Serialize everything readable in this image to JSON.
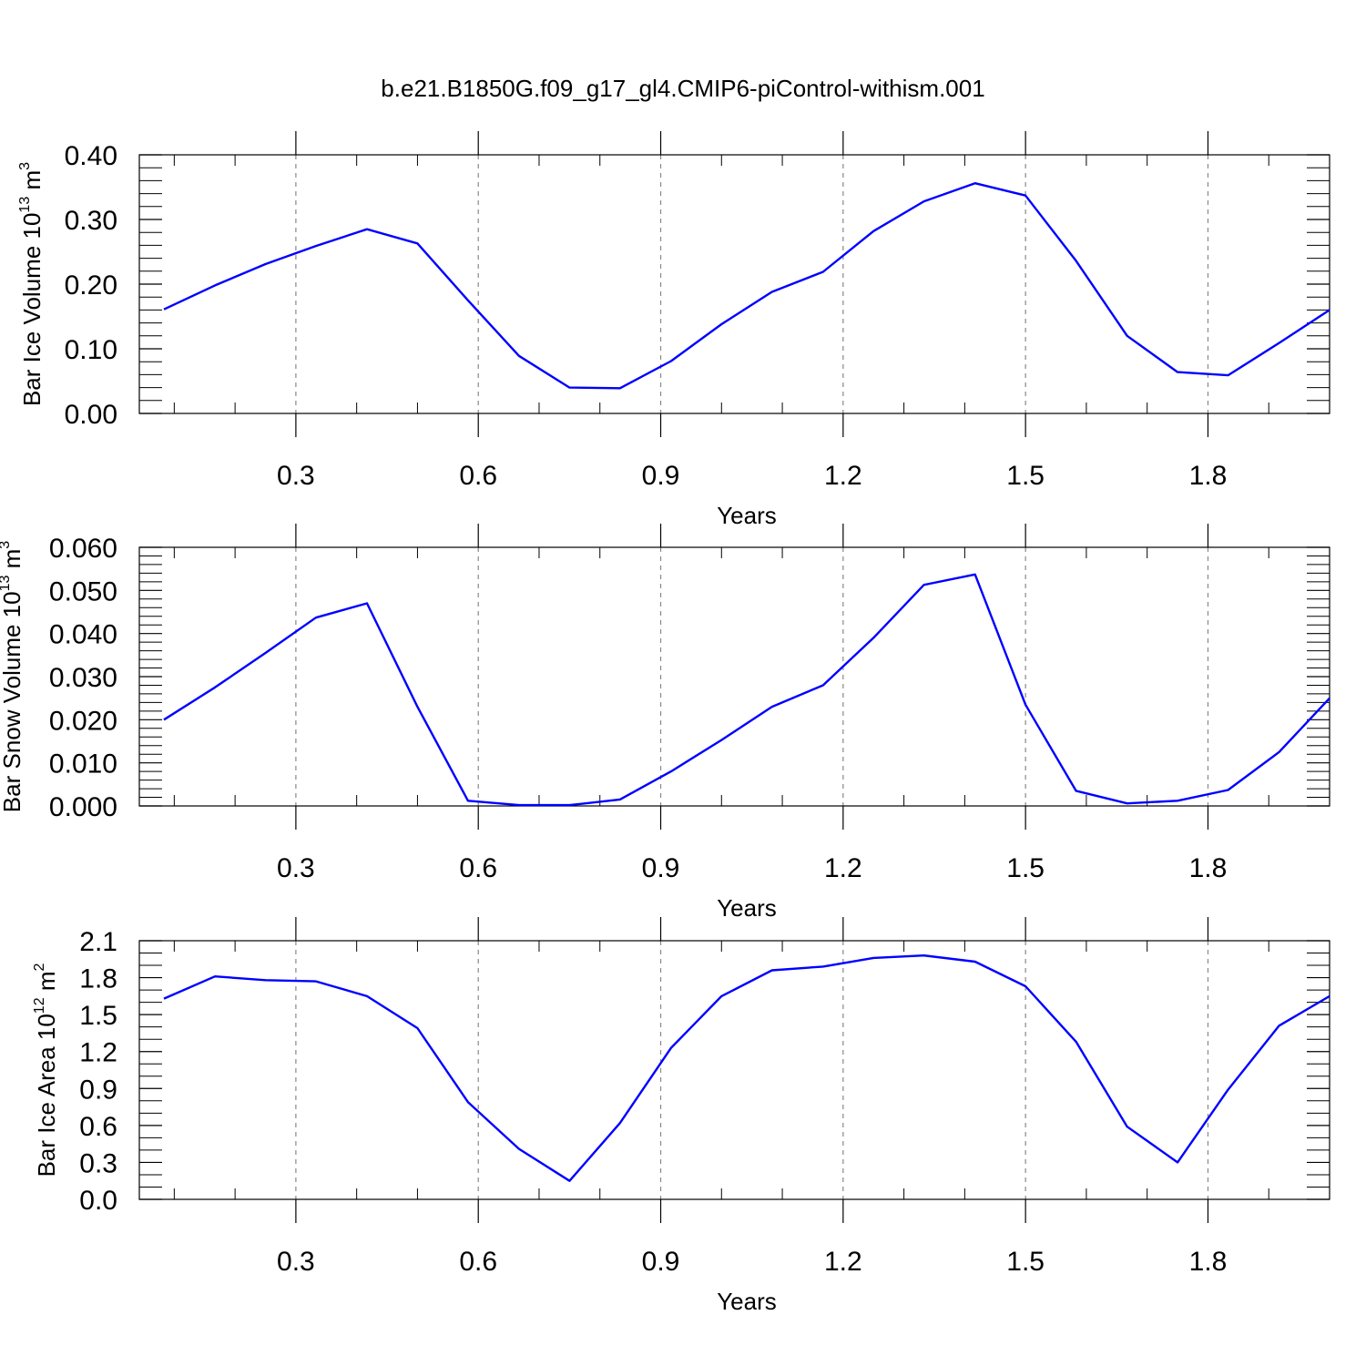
{
  "figure": {
    "title": "b.e21.B1850G.f09_g17_gl4.CMIP6-piControl-withism.001"
  },
  "chart_data": [
    {
      "type": "line",
      "xlabel": "Years",
      "ylabel": {
        "text": "Bar Ice Volume 10",
        "sup": "13",
        "unit": " m",
        "unit_sup": "3"
      },
      "xlim": [
        0.083,
        2.0
      ],
      "ylim": [
        0.0,
        0.4
      ],
      "x_ticks": [
        0.3,
        0.6,
        0.9,
        1.2,
        1.5,
        1.8
      ],
      "x_tick_labels": [
        "0.3",
        "0.6",
        "0.9",
        "1.2",
        "1.5",
        "1.8"
      ],
      "y_ticks": [
        0.0,
        0.1,
        0.2,
        0.3,
        0.4
      ],
      "y_tick_labels": [
        "0.00",
        "0.10",
        "0.20",
        "0.30",
        "0.40"
      ],
      "y_minor_step": 0.02,
      "grid": "vertical dashed at major x ticks",
      "series": [
        {
          "color": "#0000ff",
          "x": [
            0.083,
            0.167,
            0.25,
            0.333,
            0.417,
            0.5,
            0.583,
            0.667,
            0.75,
            0.833,
            0.917,
            1.0,
            1.083,
            1.167,
            1.25,
            1.333,
            1.417,
            1.5,
            1.583,
            1.667,
            1.75,
            1.833,
            1.917,
            2.0
          ],
          "y": [
            0.161,
            0.198,
            0.231,
            0.259,
            0.285,
            0.263,
            0.175,
            0.089,
            0.04,
            0.039,
            0.081,
            0.138,
            0.188,
            0.219,
            0.282,
            0.328,
            0.356,
            0.337,
            0.236,
            0.12,
            0.064,
            0.059,
            0.109,
            0.16
          ]
        }
      ]
    },
    {
      "type": "line",
      "xlabel": "Years",
      "ylabel": {
        "text": "Bar Snow Volume 10",
        "sup": "13",
        "unit": " m",
        "unit_sup": "3"
      },
      "xlim": [
        0.083,
        2.0
      ],
      "ylim": [
        0.0,
        0.06
      ],
      "x_ticks": [
        0.3,
        0.6,
        0.9,
        1.2,
        1.5,
        1.8
      ],
      "x_tick_labels": [
        "0.3",
        "0.6",
        "0.9",
        "1.2",
        "1.5",
        "1.8"
      ],
      "y_ticks": [
        0.0,
        0.01,
        0.02,
        0.03,
        0.04,
        0.05,
        0.06
      ],
      "y_tick_labels": [
        "0.000",
        "0.010",
        "0.020",
        "0.030",
        "0.040",
        "0.050",
        "0.060"
      ],
      "y_minor_step": 0.002,
      "grid": "vertical dashed at major x ticks",
      "series": [
        {
          "color": "#0000ff",
          "x": [
            0.083,
            0.167,
            0.25,
            0.333,
            0.417,
            0.5,
            0.583,
            0.667,
            0.75,
            0.833,
            0.917,
            1.0,
            1.083,
            1.167,
            1.25,
            1.333,
            1.417,
            1.5,
            1.583,
            1.667,
            1.75,
            1.833,
            1.917,
            2.0
          ],
          "y": [
            0.02,
            0.0275,
            0.0355,
            0.0437,
            0.047,
            0.023,
            0.0012,
            0.0002,
            0.0002,
            0.0015,
            0.008,
            0.0153,
            0.023,
            0.028,
            0.039,
            0.0513,
            0.0537,
            0.0235,
            0.0035,
            0.0006,
            0.0012,
            0.0037,
            0.0125,
            0.025
          ]
        }
      ]
    },
    {
      "type": "line",
      "xlabel": "Years",
      "ylabel": {
        "text": "Bar Ice Area 10",
        "sup": "12",
        "unit": " m",
        "unit_sup": "2"
      },
      "xlim": [
        0.083,
        2.0
      ],
      "ylim": [
        0.0,
        2.1
      ],
      "x_ticks": [
        0.3,
        0.6,
        0.9,
        1.2,
        1.5,
        1.8
      ],
      "x_tick_labels": [
        "0.3",
        "0.6",
        "0.9",
        "1.2",
        "1.5",
        "1.8"
      ],
      "y_ticks": [
        0.0,
        0.3,
        0.6,
        0.9,
        1.2,
        1.5,
        1.8,
        2.1
      ],
      "y_tick_labels": [
        "0.0",
        "0.3",
        "0.6",
        "0.9",
        "1.2",
        "1.5",
        "1.8",
        "2.1"
      ],
      "y_minor_step": 0.1,
      "grid": "vertical dashed at major x ticks",
      "series": [
        {
          "color": "#0000ff",
          "x": [
            0.083,
            0.167,
            0.25,
            0.333,
            0.417,
            0.5,
            0.583,
            0.667,
            0.75,
            0.833,
            0.917,
            1.0,
            1.083,
            1.167,
            1.25,
            1.333,
            1.417,
            1.5,
            1.583,
            1.667,
            1.75,
            1.833,
            1.917,
            2.0
          ],
          "y": [
            1.63,
            1.81,
            1.78,
            1.77,
            1.65,
            1.39,
            0.79,
            0.41,
            0.15,
            0.62,
            1.23,
            1.65,
            1.86,
            1.89,
            1.96,
            1.98,
            1.93,
            1.73,
            1.28,
            0.59,
            0.3,
            0.89,
            1.41,
            1.65
          ]
        }
      ]
    }
  ]
}
